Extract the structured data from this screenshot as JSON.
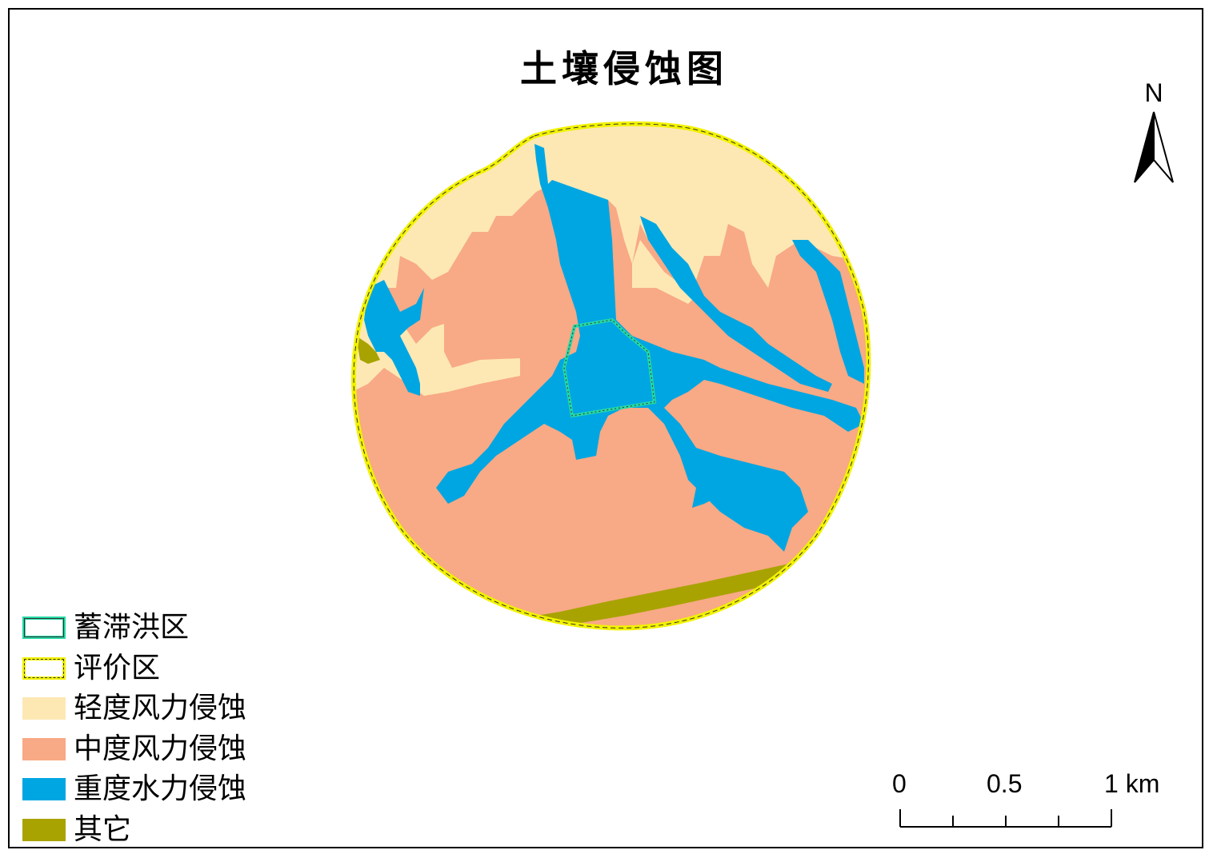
{
  "map": {
    "title": "土壤侵蚀图",
    "north_label": "N",
    "colors": {
      "light_wind": "#FDE8B4",
      "moderate_wind": "#F8A985",
      "severe_water": "#00A6E2",
      "other": "#A8A300",
      "flood_zone_outline": "#25D9A6",
      "assessment_outline": "#F2F200"
    }
  },
  "legend": {
    "items": [
      {
        "label": "蓄滞洪区",
        "type": "outline",
        "color": "#25D9A6"
      },
      {
        "label": "评价区",
        "type": "outline",
        "color": "#F2F200"
      },
      {
        "label": "轻度风力侵蚀",
        "type": "fill",
        "color": "#FDE8B4"
      },
      {
        "label": "中度风力侵蚀",
        "type": "fill",
        "color": "#F8A985"
      },
      {
        "label": "重度水力侵蚀",
        "type": "fill",
        "color": "#00A6E2"
      },
      {
        "label": "其它",
        "type": "fill",
        "color": "#A8A300"
      }
    ]
  },
  "scale": {
    "labels": [
      "0",
      "0.5",
      "1 km"
    ]
  }
}
